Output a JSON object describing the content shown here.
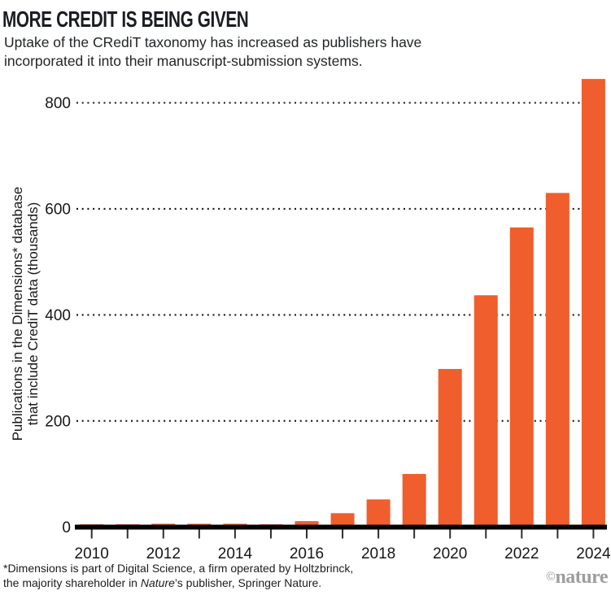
{
  "chart_data": {
    "type": "bar",
    "title": "MORE CREDIT IS BEING GIVEN",
    "subtitle_line1": "Uptake of the CRediT taxonomy has increased as publishers have",
    "subtitle_line2": "incorporated it into their manuscript-submission systems.",
    "categories": [
      2010,
      2011,
      2012,
      2013,
      2014,
      2015,
      2016,
      2017,
      2018,
      2019,
      2020,
      2021,
      2022,
      2023,
      2024
    ],
    "values": [
      5,
      5,
      6,
      6,
      6,
      5,
      11,
      26,
      52,
      100,
      298,
      437,
      565,
      630,
      845
    ],
    "units": "thousands of publications",
    "ylabel_line1": "Publications in the Dimensions* database",
    "ylabel_line2": "that include CrediT data (thousands)",
    "xlabel": "",
    "yticks": [
      0,
      200,
      400,
      600,
      800
    ],
    "xtick_labeled_years": [
      2010,
      2012,
      2014,
      2016,
      2018,
      2020,
      2022,
      2024
    ],
    "ylim": [
      0,
      860
    ],
    "grid": "horizontal-dotted",
    "legend": "none",
    "bar_color": "#EF5E2C",
    "axis_color": "#000000",
    "text_color": "#161616"
  },
  "footnote": {
    "line1": "*Dimensions is part of Digital Science, a firm operated by Holtzbrinck,",
    "line2_pre": "the majority shareholder in ",
    "line2_italic": "Nature",
    "line2_post": "’s publisher, Springer Nature."
  },
  "logo": {
    "copyright": "©",
    "name": "nature"
  }
}
